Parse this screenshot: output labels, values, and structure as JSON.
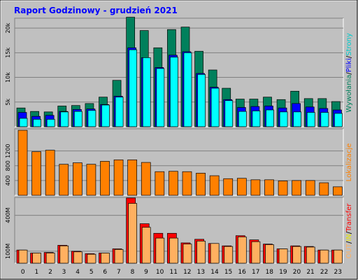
{
  "title": "Raport Godzinowy -  grudzień 2021",
  "colors": {
    "background": "#c0c0c0",
    "title": "#0000ff",
    "hits": "#00805c",
    "files": "#0000ff",
    "pages": "#00ffff",
    "sites": "#ff8000",
    "kb_in": "#ff0000",
    "kb_out": "#ffb060"
  },
  "right_labels": {
    "top": [
      {
        "text": "Wywołania",
        "color": "#00805c"
      },
      {
        "text": "/",
        "color": "#000000"
      },
      {
        "text": "Pliki",
        "color": "#0000ff"
      },
      {
        "text": "/",
        "color": "#000000"
      },
      {
        "text": "Strony",
        "color": "#00cccc"
      }
    ],
    "middle": [
      {
        "text": "Lokalizacje",
        "color": "#ff8000"
      }
    ],
    "bottom": [
      {
        "text": "OUT",
        "color": "#ffb060"
      },
      {
        "text": "/",
        "color": "#000000"
      },
      {
        "text": "IN",
        "color": "#e8e800"
      },
      {
        "text": "/",
        "color": "#000000"
      },
      {
        "text": "Transfer",
        "color": "#ff0000"
      }
    ]
  },
  "chart_data": [
    {
      "type": "bar",
      "name": "Wywołania/Pliki/Strony",
      "categories": [
        "0",
        "1",
        "2",
        "3",
        "4",
        "5",
        "6",
        "7",
        "8",
        "9",
        "10",
        "11",
        "12",
        "13",
        "14",
        "15",
        "16",
        "17",
        "18",
        "19",
        "20",
        "21",
        "22",
        "23"
      ],
      "ylim": [
        0,
        22000
      ],
      "yticks": [
        5000,
        10000,
        15000,
        20000
      ],
      "ytick_labels": [
        "5k",
        "10k",
        "15k",
        "20k"
      ],
      "series": [
        {
          "name": "Wywołania",
          "values": [
            3800,
            3100,
            3000,
            4200,
            4300,
            4700,
            6000,
            9400,
            22200,
            19500,
            16000,
            19700,
            20200,
            15300,
            11500,
            7800,
            5600,
            5600,
            6000,
            5500,
            7200,
            5700,
            5700,
            5100
          ]
        },
        {
          "name": "Pliki",
          "values": [
            2900,
            2100,
            2300,
            3100,
            3500,
            3600,
            4500,
            6200,
            16000,
            14000,
            12000,
            14500,
            15200,
            10800,
            8000,
            5500,
            3900,
            4100,
            4200,
            3800,
            4700,
            4000,
            3700,
            3400
          ]
        },
        {
          "name": "Strony",
          "values": [
            1700,
            1500,
            1500,
            3000,
            3100,
            3300,
            4400,
            6000,
            15600,
            14000,
            11800,
            14100,
            15000,
            10600,
            7800,
            5300,
            3100,
            3200,
            3400,
            3000,
            3000,
            2900,
            2900,
            2700
          ]
        }
      ]
    },
    {
      "type": "bar",
      "name": "Lokalizacje",
      "categories": [
        "0",
        "1",
        "2",
        "3",
        "4",
        "5",
        "6",
        "7",
        "8",
        "9",
        "10",
        "11",
        "12",
        "13",
        "14",
        "15",
        "16",
        "17",
        "18",
        "19",
        "20",
        "21",
        "22",
        "23"
      ],
      "ylim": [
        0,
        1800
      ],
      "yticks": [
        400,
        800,
        1200
      ],
      "ytick_labels": [
        "400",
        "800",
        "1200"
      ],
      "series": [
        {
          "name": "Lokalizacje",
          "values": [
            1760,
            1180,
            1220,
            840,
            880,
            840,
            920,
            960,
            960,
            890,
            640,
            650,
            640,
            600,
            530,
            450,
            460,
            420,
            420,
            390,
            400,
            400,
            340,
            230
          ]
        }
      ]
    },
    {
      "type": "bar",
      "name": "Transfer",
      "categories": [
        "0",
        "1",
        "2",
        "3",
        "4",
        "5",
        "6",
        "7",
        "8",
        "9",
        "10",
        "11",
        "12",
        "13",
        "14",
        "15",
        "16",
        "17",
        "18",
        "19",
        "20",
        "21",
        "22",
        "23"
      ],
      "ylim": [
        0,
        550
      ],
      "yticks": [
        100,
        400
      ],
      "ytick_labels": [
        "100M",
        "400M"
      ],
      "series": [
        {
          "name": "IN",
          "values": [
            110,
            85,
            90,
            150,
            100,
            80,
            85,
            120,
            545,
            330,
            250,
            250,
            170,
            200,
            165,
            145,
            230,
            195,
            160,
            120,
            145,
            140,
            110,
            110
          ]
        },
        {
          "name": "OUT",
          "values": [
            110,
            85,
            85,
            145,
            95,
            75,
            85,
            115,
            500,
            300,
            210,
            210,
            160,
            185,
            165,
            140,
            220,
            180,
            155,
            120,
            140,
            135,
            110,
            110
          ]
        }
      ]
    }
  ]
}
